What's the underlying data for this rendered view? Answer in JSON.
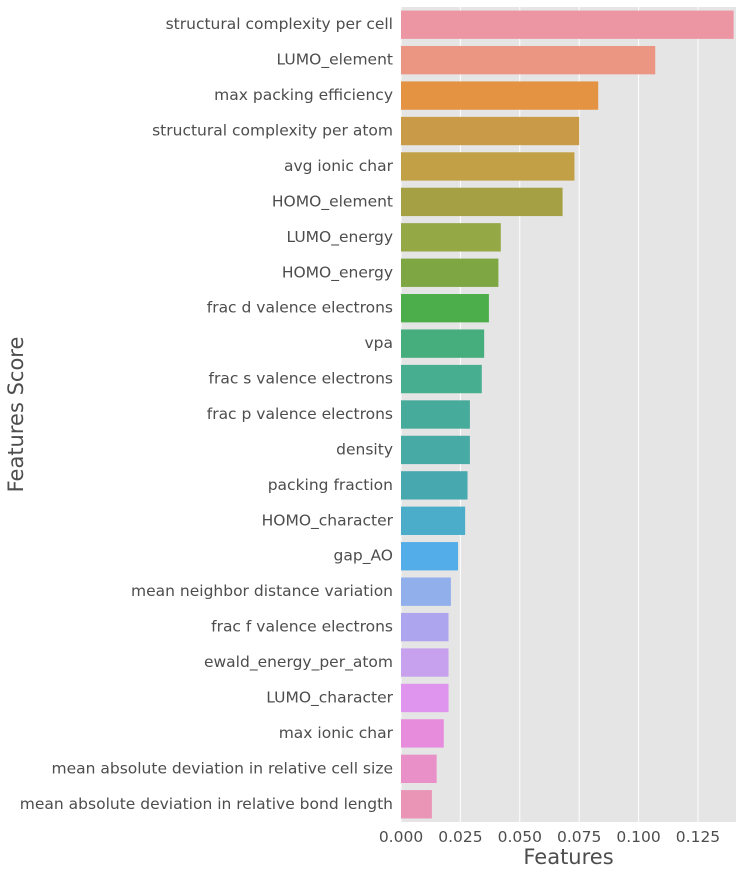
{
  "chart_data": {
    "type": "bar",
    "orientation": "horizontal",
    "xlabel": "Features",
    "ylabel": "Features Score",
    "xlim": [
      0,
      0.141
    ],
    "x_ticks": [
      "0.000",
      "0.025",
      "0.050",
      "0.075",
      "0.100",
      "0.125"
    ],
    "grid": true,
    "background": "#e5e5e5",
    "grid_color": "#ffffff",
    "categories": [
      "structural complexity per cell",
      "LUMO_element",
      "max packing efficiency",
      "structural complexity per atom",
      "avg ionic char",
      "HOMO_element",
      "LUMO_energy",
      "HOMO_energy",
      "frac d valence electrons",
      "vpa",
      "frac s valence electrons",
      "frac p valence electrons",
      "density",
      "packing fraction",
      "HOMO_character",
      "gap_AO",
      "mean neighbor distance variation",
      "frac f valence electrons",
      "ewald_energy_per_atom",
      "LUMO_character",
      "max ionic char",
      "mean absolute deviation in relative cell size",
      "mean absolute deviation in relative bond length"
    ],
    "values": [
      0.14,
      0.107,
      0.083,
      0.075,
      0.073,
      0.068,
      0.042,
      0.041,
      0.037,
      0.035,
      0.034,
      0.029,
      0.029,
      0.028,
      0.027,
      0.024,
      0.021,
      0.02,
      0.02,
      0.02,
      0.018,
      0.015,
      0.013
    ],
    "colors": [
      "#ed96a3",
      "#eb9583",
      "#e49343",
      "#c99a48",
      "#c2a046",
      "#a4a043",
      "#94a845",
      "#7ea744",
      "#4cae4a",
      "#46ae7c",
      "#47ae8f",
      "#47ab9b",
      "#48aaa4",
      "#47a8b0",
      "#4badca",
      "#52ade8",
      "#90afeb",
      "#aea5ef",
      "#c7a0ee",
      "#df95ee",
      "#e78bdc",
      "#ea90c9",
      "#ea94b6"
    ]
  }
}
